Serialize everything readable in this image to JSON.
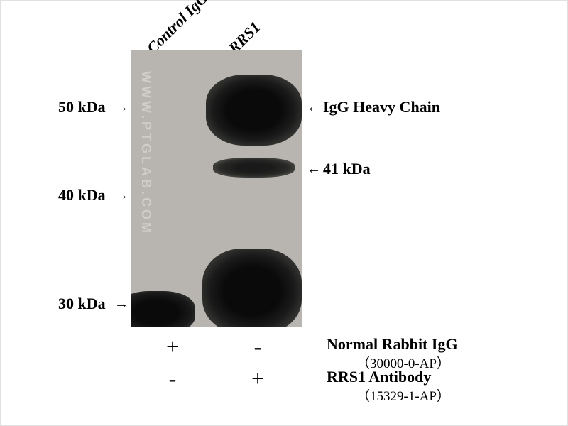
{
  "laneLabels": {
    "control": "Control IgG",
    "rrs1": "RRS1"
  },
  "markers": {
    "m50": "50 kDa",
    "m40": "40 kDa",
    "m30": "30 kDa"
  },
  "rightLabels": {
    "igg": "IgG Heavy Chain",
    "kda41": "41 kDa"
  },
  "plusMinus": {
    "r1c1": "+",
    "r1c2": "-",
    "r2c1": "-",
    "r2c2": "+"
  },
  "legend": {
    "line1": "Normal Rabbit IgG",
    "line1sub": "（30000-0-AP）",
    "line2": "RRS1 Antibody",
    "line2sub": "（15329-1-AP）"
  },
  "watermark": "WWW.PTGLAB.COM",
  "arrows": {
    "right": "→",
    "left": "←"
  },
  "styling": {
    "background": "#ffffff",
    "blotBackground": "#b8b5b0",
    "bandDark": "#0a0a0a",
    "textColor": "#000000",
    "watermarkColor": "#d0cec8",
    "fontFamily": "Times New Roman",
    "labelFontSize": 22,
    "plusMinusFontSize": 32,
    "blotWidth": 240,
    "blotHeight": 390,
    "imageWidth": 800,
    "imageHeight": 600
  }
}
